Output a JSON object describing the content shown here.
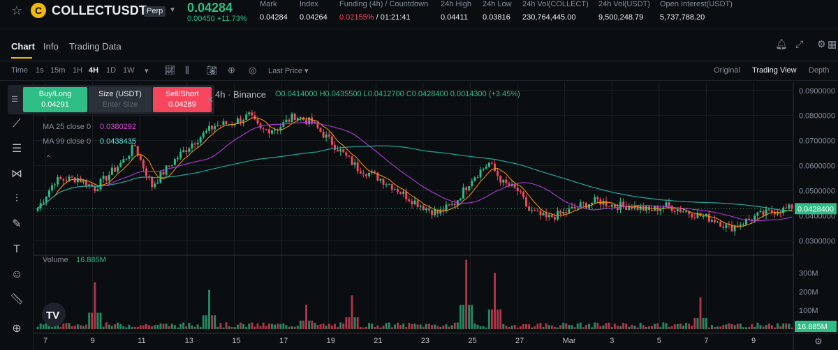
{
  "header": {
    "symbol": "COLLECTUSDT",
    "badge": "Perp",
    "last_price": "0.04284",
    "change": "0.00450 +11.73%",
    "stats": [
      {
        "label": "Mark",
        "value": "0.04284"
      },
      {
        "label": "Index",
        "value": "0.04264"
      },
      {
        "label": "Funding (4h) / Countdown",
        "value_neg": "0.02155%",
        "value": " / 01:21:41"
      },
      {
        "label": "24h High",
        "value": "0.04411"
      },
      {
        "label": "24h Low",
        "value": "0.03816"
      },
      {
        "label": "24h Vol(COLLECT)",
        "value": "230,764,445.00"
      },
      {
        "label": "24h Vol(USDT)",
        "value": "9,500,248.79"
      },
      {
        "label": "Open Interest(USDT)",
        "value": "5,737,788.20"
      }
    ]
  },
  "tabs": [
    "Chart",
    "Info",
    "Trading Data"
  ],
  "toolbar": {
    "intervals": [
      "Time",
      "1s",
      "15m",
      "1H",
      "4H",
      "1D",
      "1W"
    ],
    "active_interval": "4H",
    "price_type": "Last Price",
    "views": [
      "Original",
      "Trading View",
      "Depth"
    ],
    "active_view": "Trading View"
  },
  "order_widget": {
    "buy_label": "Buy/Long",
    "buy_price": "0.04291",
    "size_label": "Size (USDT)",
    "size_placeholder": "Enter Size",
    "sell_label": "Sell/Short",
    "sell_price": "0.04289"
  },
  "legend": {
    "source": "4h · Binance",
    "ohlc": "O0.0414000 H0.0435500 L0.0412700 C0.0428400 0.0014300 (+3.45%)",
    "ma25_label": "MA 25 close 0",
    "ma25_value": "0.0380292",
    "ma99_label": "MA 99 close 0",
    "ma99_value": "0.0438435",
    "volume_label": "Volume",
    "volume_value": "16.885M"
  },
  "chart_data": {
    "type": "candlestick",
    "x_ticks": [
      "7",
      "9",
      "11",
      "13",
      "15",
      "17",
      "19",
      "21",
      "23",
      "25",
      "27",
      "Mar",
      "3",
      "5",
      "7",
      "9"
    ],
    "y_ticks": [
      "0.0900000",
      "0.0800000",
      "0.0700000",
      "0.0600000",
      "0.0500000",
      "0.0400000",
      "0.0300000"
    ],
    "y_range": [
      0.0265,
      0.0905
    ],
    "volume_ticks": [
      "300M",
      "200M",
      "100M"
    ],
    "volume_range": [
      0,
      380
    ],
    "current_price_label": "0.0428400",
    "current_volume_label": "16.885M",
    "current_price": 0.04284,
    "keyframes": [
      [
        0,
        0.043
      ],
      [
        6,
        0.054
      ],
      [
        14,
        0.055
      ],
      [
        20,
        0.051
      ],
      [
        30,
        0.062
      ],
      [
        34,
        0.068
      ],
      [
        36,
        0.062
      ],
      [
        40,
        0.052
      ],
      [
        46,
        0.06
      ],
      [
        54,
        0.069
      ],
      [
        62,
        0.076
      ],
      [
        68,
        0.077
      ],
      [
        74,
        0.08
      ],
      [
        78,
        0.074
      ],
      [
        84,
        0.075
      ],
      [
        90,
        0.08
      ],
      [
        96,
        0.077
      ],
      [
        104,
        0.068
      ],
      [
        112,
        0.059
      ],
      [
        118,
        0.056
      ],
      [
        124,
        0.052
      ],
      [
        130,
        0.047
      ],
      [
        136,
        0.043
      ],
      [
        140,
        0.041
      ],
      [
        146,
        0.045
      ],
      [
        152,
        0.055
      ],
      [
        158,
        0.061
      ],
      [
        163,
        0.053
      ],
      [
        168,
        0.05
      ],
      [
        172,
        0.042
      ],
      [
        178,
        0.039
      ],
      [
        184,
        0.041
      ],
      [
        190,
        0.044
      ],
      [
        196,
        0.046
      ],
      [
        202,
        0.044
      ],
      [
        208,
        0.044
      ],
      [
        214,
        0.042
      ],
      [
        220,
        0.044
      ],
      [
        226,
        0.042
      ],
      [
        232,
        0.04
      ],
      [
        238,
        0.038
      ],
      [
        242,
        0.035
      ],
      [
        246,
        0.037
      ],
      [
        252,
        0.04
      ],
      [
        258,
        0.042
      ],
      [
        264,
        0.043
      ]
    ],
    "ma25_color": "#ff9800",
    "ma99_color": "#b039d8",
    "ma_long_color": "#26a69a",
    "up_color": "#2ebd85",
    "down_color": "#f6465d",
    "volume_spikes": [
      [
        150,
        370
      ],
      [
        160,
        300
      ],
      [
        60,
        210
      ],
      [
        20,
        250
      ],
      [
        94,
        130
      ],
      [
        110,
        180
      ],
      [
        232,
        170
      ]
    ]
  }
}
